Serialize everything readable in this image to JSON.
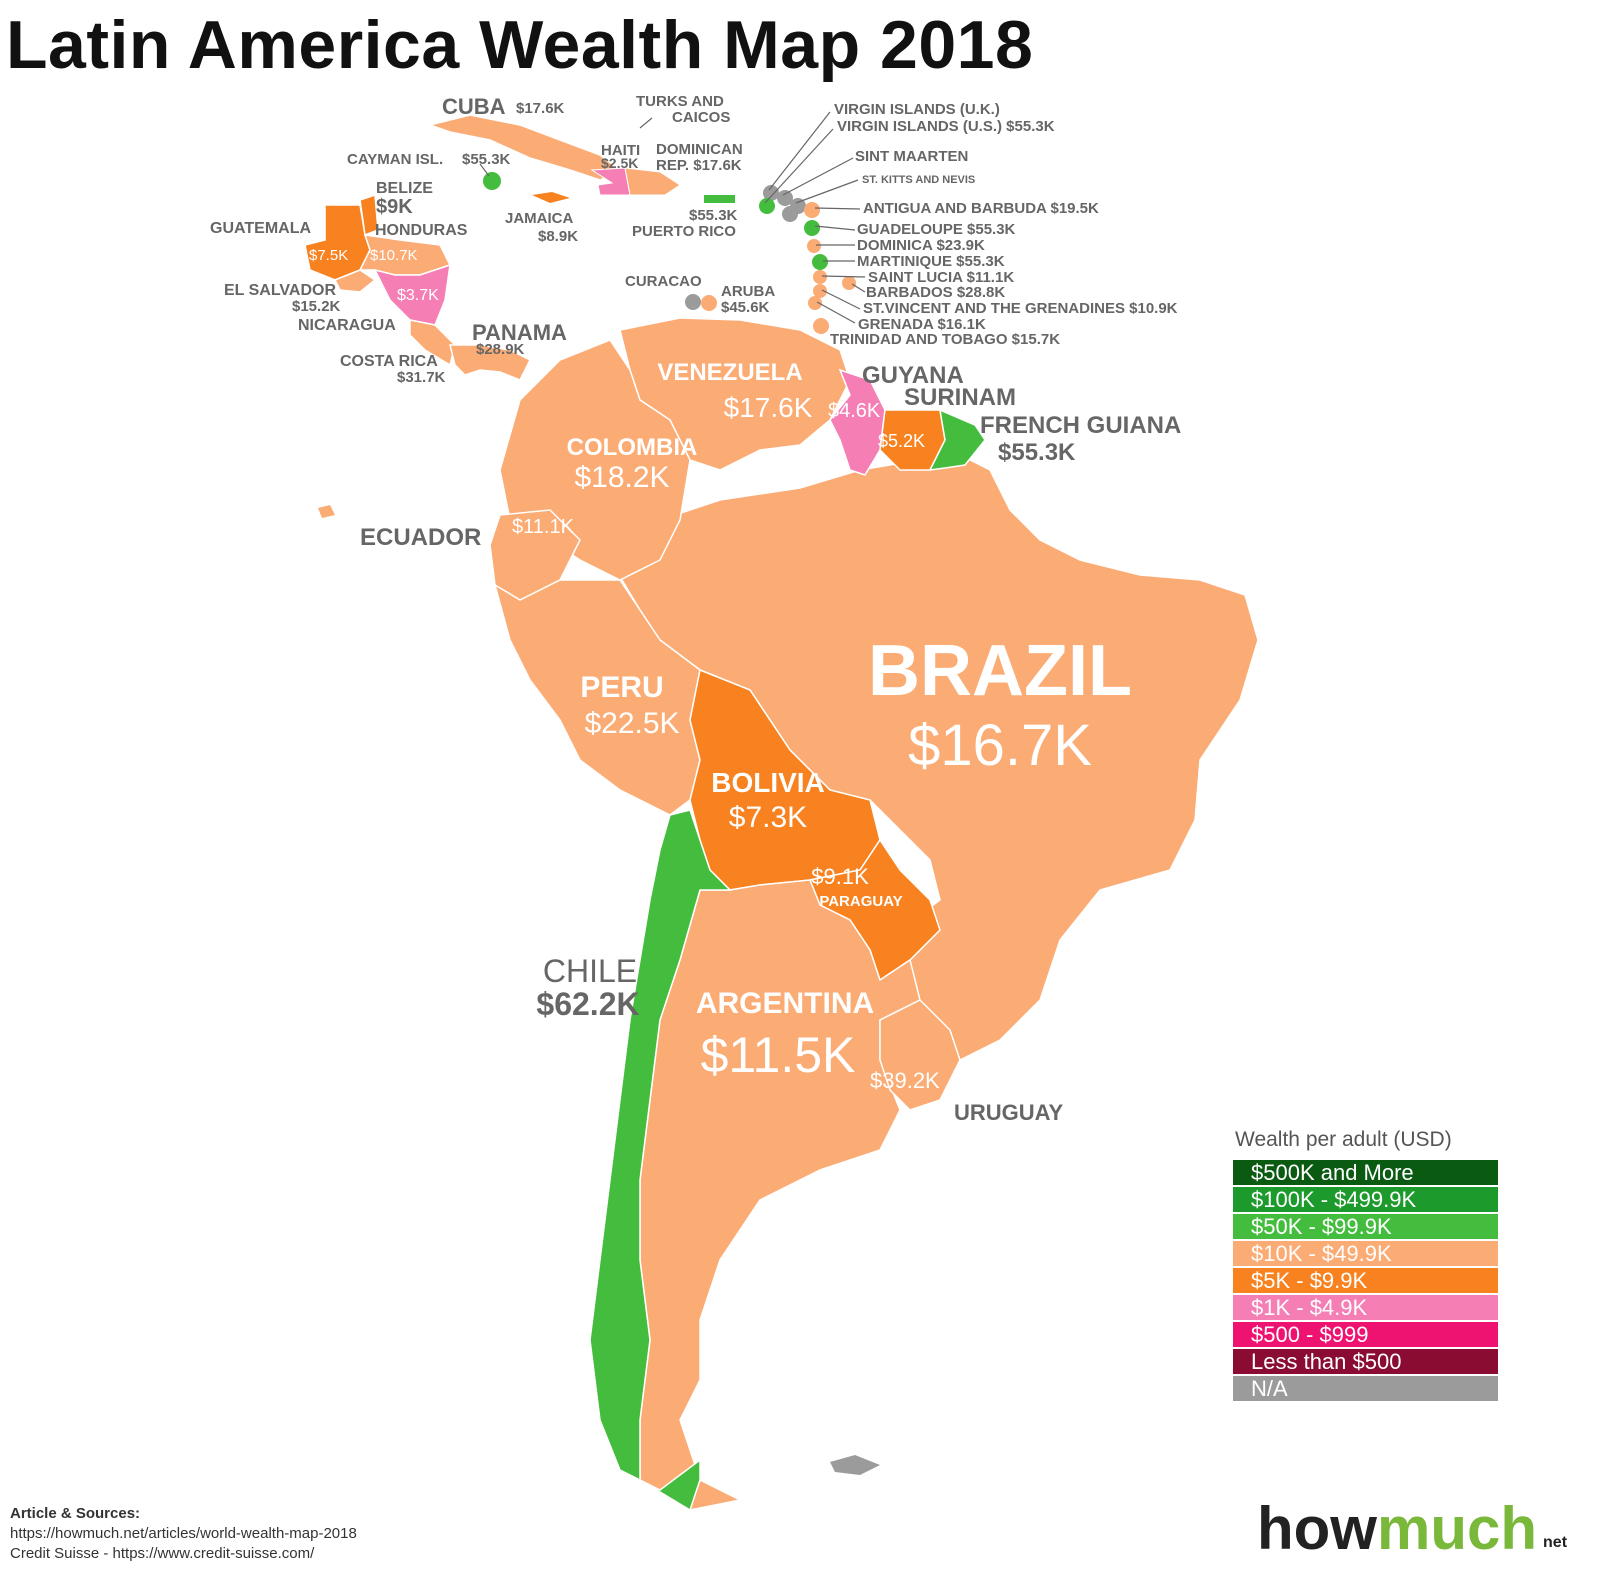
{
  "title": "Latin America Wealth Map 2018",
  "colors": {
    "tier_500k": "#0b5a12",
    "tier_100k": "#1d9a2c",
    "tier_50k": "#44bd3e",
    "tier_10k": "#fbab74",
    "tier_5k": "#f7821f",
    "tier_1k": "#f57eb5",
    "tier_500": "#ef1371",
    "tier_lt500": "#8a0c33",
    "tier_na": "#9b9b9b"
  },
  "countries": {
    "brazil": {
      "name": "BRAZIL",
      "value": "$16.7K"
    },
    "argentina": {
      "name": "ARGENTINA",
      "value": "$11.5K"
    },
    "chile": {
      "name": "CHILE",
      "value": "$62.2K"
    },
    "bolivia": {
      "name": "BOLIVIA",
      "value": "$7.3K"
    },
    "paraguay": {
      "name": "PARAGUAY",
      "value": "$9.1K"
    },
    "peru": {
      "name": "PERU",
      "value": "$22.5K"
    },
    "colombia": {
      "name": "COLOMBIA",
      "value": "$18.2K"
    },
    "venezuela": {
      "name": "VENEZUELA",
      "value": "$17.6K"
    },
    "ecuador": {
      "name": "ECUADOR",
      "value": "$11.1K"
    },
    "guyana": {
      "name": "GUYANA",
      "value": "$4.6K"
    },
    "surinam": {
      "name": "SURINAM",
      "value": "$5.2K"
    },
    "french_guiana": {
      "name": "FRENCH GUIANA",
      "value": "$55.3K"
    },
    "uruguay": {
      "name": "URUGUAY",
      "value": "$39.2K"
    },
    "panama": {
      "name": "PANAMA",
      "value": "$28.9K"
    },
    "costa_rica": {
      "name": "COSTA RICA",
      "value": "$31.7K"
    },
    "nicaragua": {
      "name": "NICARAGUA",
      "value": "$3.7K"
    },
    "el_salvador": {
      "name": "EL SALVADOR",
      "value": "$15.2K"
    },
    "honduras": {
      "name": "HONDURAS",
      "value": "$10.7K"
    },
    "guatemala": {
      "name": "GUATEMALA",
      "value": "$7.5K"
    },
    "belize": {
      "name": "BELIZE",
      "value": "$9K"
    },
    "cuba": {
      "name": "CUBA",
      "value": "$17.6K"
    },
    "cayman": {
      "name": "CAYMAN ISL.",
      "value": "$55.3K"
    },
    "jamaica": {
      "name": "JAMAICA",
      "value": "$8.9K"
    },
    "haiti": {
      "name": "HAITI",
      "value": "$2.5K"
    },
    "dominican_line1": "DOMINICAN",
    "dominican_line2": "REP. $17.6K",
    "turks_line1": "TURKS AND",
    "turks_line2": "CAICOS",
    "puerto_rico": {
      "name": "PUERTO RICO",
      "value": "$55.3K"
    },
    "curacao": {
      "name": "CURACAO"
    },
    "aruba": {
      "name": "ARUBA",
      "value": "$45.6K"
    }
  },
  "islands": {
    "vi_uk": "VIRGIN ISLANDS (U.K.)",
    "vi_us": "VIRGIN ISLANDS (U.S.) $55.3K",
    "sint_maarten": "SINT MAARTEN",
    "st_kitts": "ST. KITTS AND NEVIS",
    "antigua": "ANTIGUA AND BARBUDA $19.5K",
    "guadeloupe": "GUADELOUPE $55.3K",
    "dominica": "DOMINICA $23.9K",
    "martinique": "MARTINIQUE $55.3K",
    "saint_lucia": "SAINT LUCIA $11.1K",
    "barbados": "BARBADOS $28.8K",
    "st_vincent": "ST.VINCENT AND THE GRENADINES $10.9K",
    "grenada": "GRENADA $16.1K",
    "trinidad": "TRINIDAD AND TOBAGO $15.7K"
  },
  "legend": {
    "title": "Wealth per adult (USD)",
    "items": [
      {
        "label": "$500K and More",
        "color": "#0b5a12"
      },
      {
        "label": "$100K - $499.9K",
        "color": "#1d9a2c"
      },
      {
        "label": "$50K - $99.9K",
        "color": "#44bd3e"
      },
      {
        "label": "$10K - $49.9K",
        "color": "#fbab74"
      },
      {
        "label": "$5K - $9.9K",
        "color": "#f7821f"
      },
      {
        "label": "$1K - $4.9K",
        "color": "#f57eb5"
      },
      {
        "label": "$500 - $999",
        "color": "#ef1371"
      },
      {
        "label": "Less than $500",
        "color": "#8a0c33"
      },
      {
        "label": "N/A",
        "color": "#9b9b9b"
      }
    ]
  },
  "sources": {
    "header": "Article & Sources:",
    "line1": "https://howmuch.net/articles/world-wealth-map-2018",
    "line2": "Credit Suisse - https://www.credit-suisse.com/"
  },
  "logo": {
    "how": "how",
    "much": "much",
    "net": "net"
  }
}
